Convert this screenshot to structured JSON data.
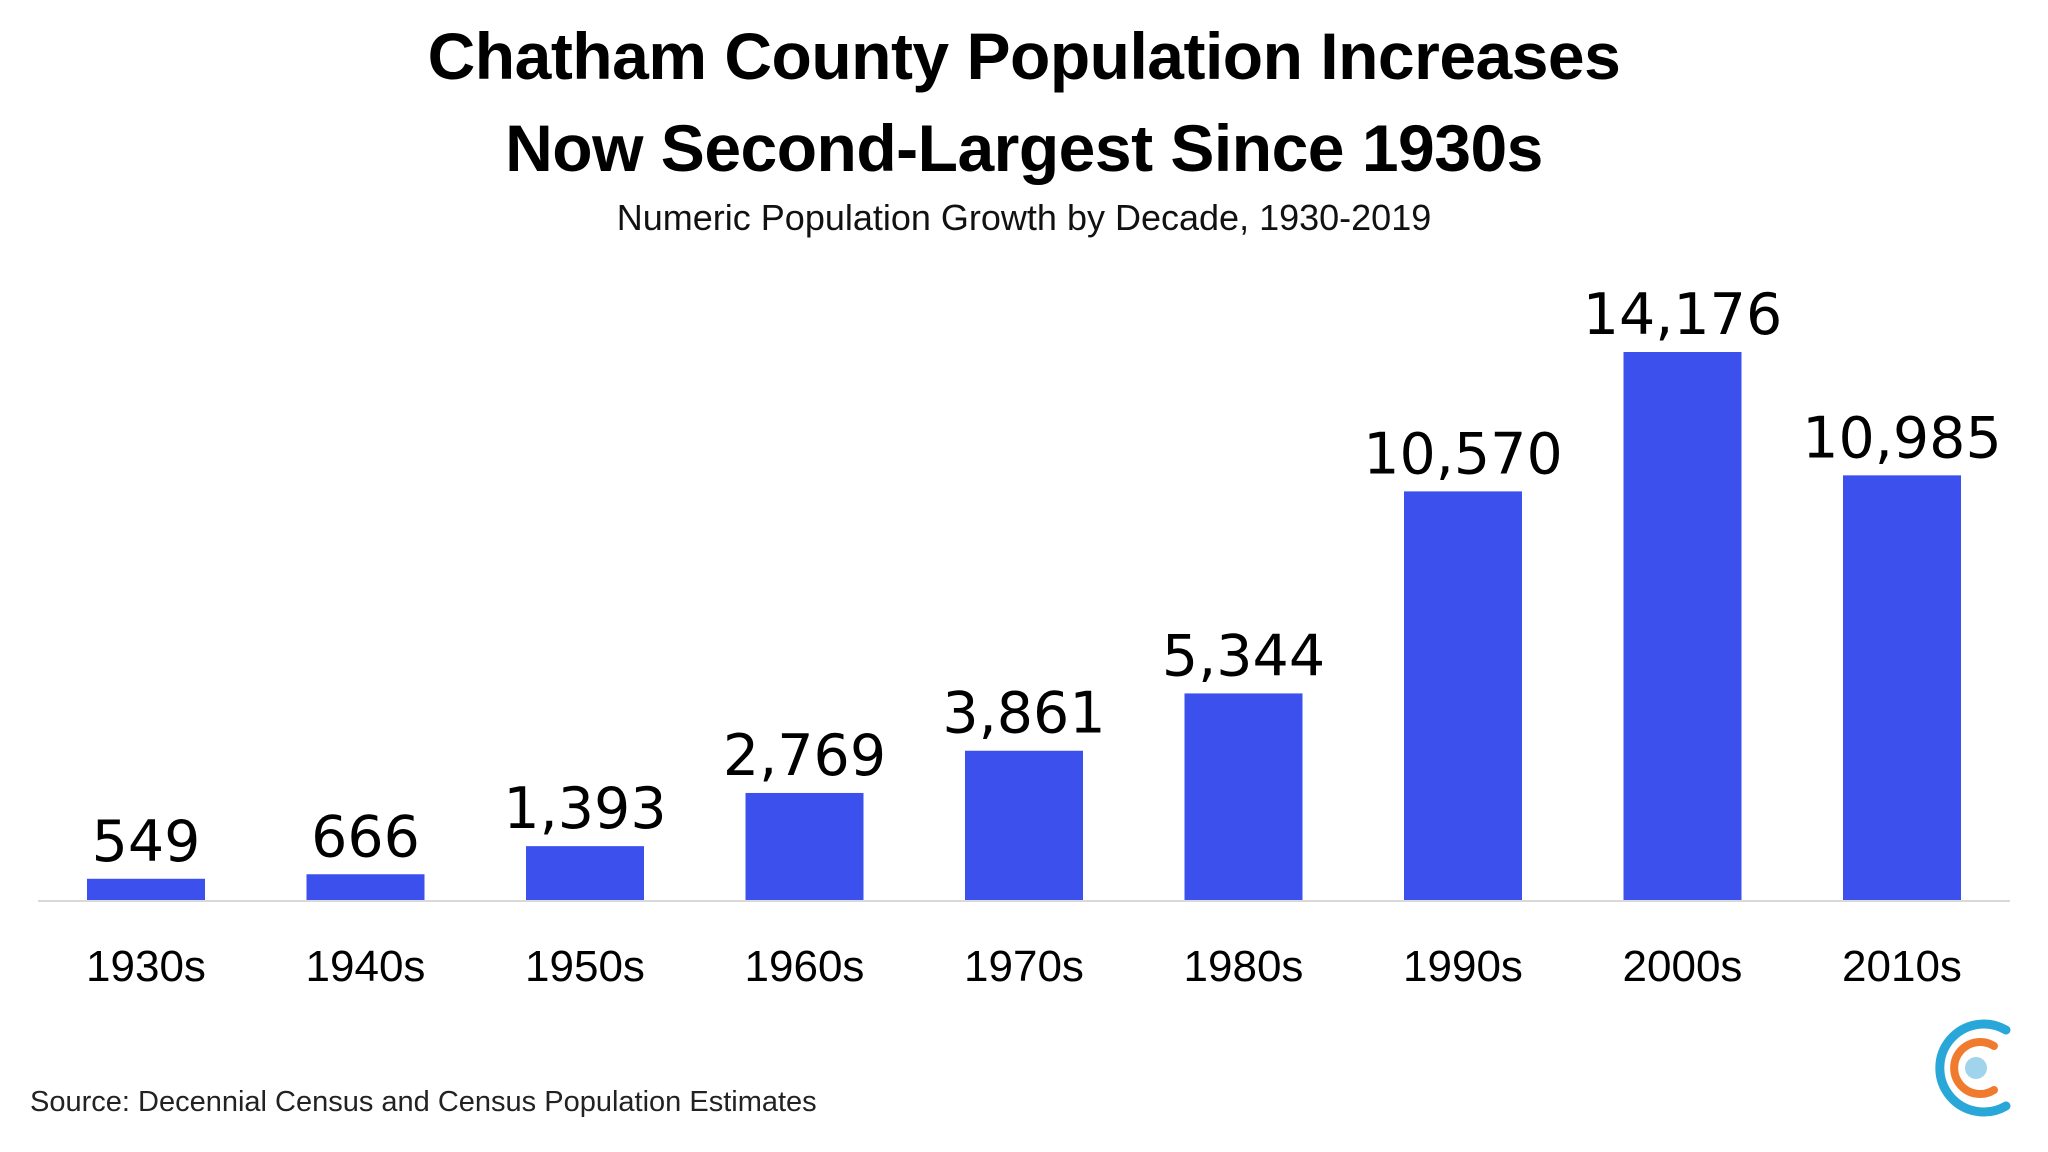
{
  "title_line1": "Chatham County Population Increases",
  "title_line2": "Now Second-Largest Since 1930s",
  "subtitle": "Numeric Population Growth by Decade, 1930-2019",
  "source": "Source: Decennial Census and Census Population Estimates",
  "colors": {
    "bar": "#3b50ed",
    "axis": "#d9d9d9",
    "text": "#000000",
    "logo_outer": "#2aa7d9",
    "logo_middle": "#f07b2e",
    "logo_inner": "#9fd4ec"
  },
  "logo_icon": "concentric-c-logo-icon",
  "chart_data": {
    "type": "bar",
    "title": "Chatham County Population Increases Now Second-Largest Since 1930s",
    "subtitle": "Numeric Population Growth by Decade, 1930-2019",
    "categories": [
      "1930s",
      "1940s",
      "1950s",
      "1960s",
      "1970s",
      "1980s",
      "1990s",
      "2000s",
      "2010s"
    ],
    "values": [
      549,
      666,
      1393,
      2769,
      3861,
      5344,
      10570,
      14176,
      10985
    ],
    "value_labels": [
      "549",
      "666",
      "1,393",
      "2,769",
      "3,861",
      "5,344",
      "10,570",
      "14,176",
      "10,985"
    ],
    "xlabel": "",
    "ylabel": "",
    "ylim": [
      0,
      14176
    ],
    "grid": false,
    "legend": "none"
  }
}
